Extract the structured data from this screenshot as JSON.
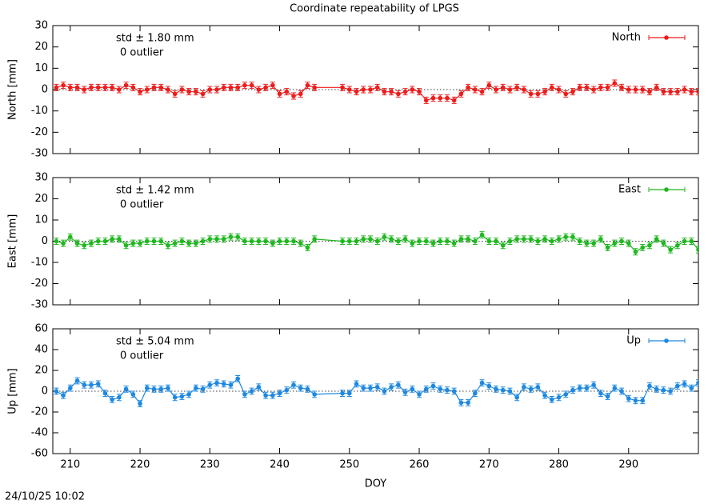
{
  "title": "Coordinate repeatability of LPGS",
  "footer": "24/10/25 10:02",
  "chart_data": [
    {
      "type": "line",
      "name": "North",
      "color": "#ee1c1c",
      "ylabel": "North [mm]",
      "std_label": "std ± 1.80 mm",
      "outlier_label": "0 outlier",
      "legend": "top-right",
      "xlim": [
        207.5,
        300
      ],
      "xticks": [
        210,
        220,
        230,
        240,
        250,
        260,
        270,
        280,
        290
      ],
      "ylim": [
        -30,
        30
      ],
      "yticks": [
        -30,
        -20,
        -10,
        0,
        10,
        20,
        30
      ],
      "reference_line": 0,
      "error": 1.5,
      "x": [
        208,
        209,
        210,
        211,
        212,
        213,
        214,
        215,
        216,
        217,
        218,
        219,
        220,
        221,
        222,
        223,
        224,
        225,
        226,
        227,
        228,
        229,
        230,
        231,
        232,
        233,
        234,
        235,
        236,
        237,
        238,
        239,
        240,
        241,
        242,
        243,
        244,
        245,
        249,
        250,
        251,
        252,
        253,
        254,
        255,
        256,
        257,
        258,
        259,
        260,
        261,
        262,
        263,
        264,
        265,
        266,
        267,
        268,
        269,
        270,
        271,
        272,
        273,
        274,
        275,
        276,
        277,
        278,
        279,
        280,
        281,
        282,
        283,
        284,
        285,
        286,
        287,
        288,
        289,
        290,
        291,
        292,
        293,
        294,
        295,
        296,
        297,
        298,
        299,
        300
      ],
      "values": [
        1,
        2,
        1,
        1,
        0,
        1,
        1,
        1,
        1,
        0,
        2,
        1,
        -1,
        0,
        1,
        1,
        0,
        -2,
        0,
        -1,
        -1,
        -2,
        0,
        0,
        1,
        1,
        1,
        2,
        2,
        0,
        1,
        2,
        -2,
        -1,
        -3,
        -2,
        2,
        1,
        1,
        0,
        -1,
        0,
        0,
        1,
        -1,
        -1,
        -2,
        -1,
        0,
        -1,
        -5,
        -4,
        -4,
        -4,
        -5,
        -2,
        1,
        0,
        -1,
        2,
        0,
        1,
        0,
        1,
        0,
        -2,
        -2,
        -1,
        1,
        0,
        -2,
        -1,
        1,
        1,
        0,
        1,
        1,
        3,
        1,
        0,
        0,
        0,
        -1,
        1,
        -1,
        -1,
        -1,
        0,
        -1,
        -1
      ]
    },
    {
      "type": "line",
      "name": "East",
      "color": "#1fb81f",
      "ylabel": "East [mm]",
      "std_label": "std ± 1.42 mm",
      "outlier_label": "0 outlier",
      "legend": "top-right",
      "xlim": [
        207.5,
        300
      ],
      "xticks": [
        210,
        220,
        230,
        240,
        250,
        260,
        270,
        280,
        290
      ],
      "ylim": [
        -30,
        30
      ],
      "yticks": [
        -30,
        -20,
        -10,
        0,
        10,
        20,
        30
      ],
      "reference_line": 0,
      "error": 1.5,
      "x": [
        208,
        209,
        210,
        211,
        212,
        213,
        214,
        215,
        216,
        217,
        218,
        219,
        220,
        221,
        222,
        223,
        224,
        225,
        226,
        227,
        228,
        229,
        230,
        231,
        232,
        233,
        234,
        235,
        236,
        237,
        238,
        239,
        240,
        241,
        242,
        243,
        244,
        245,
        249,
        250,
        251,
        252,
        253,
        254,
        255,
        256,
        257,
        258,
        259,
        260,
        261,
        262,
        263,
        264,
        265,
        266,
        267,
        268,
        269,
        270,
        271,
        272,
        273,
        274,
        275,
        276,
        277,
        278,
        279,
        280,
        281,
        282,
        283,
        284,
        285,
        286,
        287,
        288,
        289,
        290,
        291,
        292,
        293,
        294,
        295,
        296,
        297,
        298,
        299,
        300
      ],
      "values": [
        0,
        -1,
        2,
        -1,
        -2,
        -1,
        0,
        0,
        1,
        1,
        -2,
        -1,
        -1,
        0,
        0,
        0,
        -2,
        -1,
        0,
        -1,
        -1,
        0,
        1,
        1,
        1,
        2,
        2,
        0,
        0,
        0,
        0,
        -1,
        0,
        0,
        0,
        -1,
        -3,
        1,
        0,
        0,
        0,
        1,
        1,
        0,
        2,
        1,
        0,
        1,
        -1,
        0,
        0,
        -1,
        0,
        0,
        -1,
        1,
        1,
        0,
        3,
        0,
        0,
        -2,
        0,
        1,
        1,
        1,
        0,
        1,
        0,
        1,
        2,
        2,
        0,
        -1,
        -1,
        1,
        -3,
        -1,
        0,
        -1,
        -5,
        -3,
        -2,
        1,
        -1,
        -4,
        -2,
        0,
        0,
        -4
      ]
    },
    {
      "type": "line",
      "name": "Up",
      "color": "#1e88e0",
      "ylabel": "Up [mm]",
      "std_label": "std ± 5.04 mm",
      "outlier_label": "0 outlier",
      "legend": "top-right",
      "xlabel": "DOY",
      "xlim": [
        207.5,
        300
      ],
      "xticks": [
        210,
        220,
        230,
        240,
        250,
        260,
        270,
        280,
        290
      ],
      "ylim": [
        -60,
        60
      ],
      "yticks": [
        -60,
        -40,
        -20,
        0,
        20,
        40,
        60
      ],
      "reference_line": 0,
      "error": 3,
      "x": [
        208,
        209,
        210,
        211,
        212,
        213,
        214,
        215,
        216,
        217,
        218,
        219,
        220,
        221,
        222,
        223,
        224,
        225,
        226,
        227,
        228,
        229,
        230,
        231,
        232,
        233,
        234,
        235,
        236,
        237,
        238,
        239,
        240,
        241,
        242,
        243,
        244,
        245,
        249,
        250,
        251,
        252,
        253,
        254,
        255,
        256,
        257,
        258,
        259,
        260,
        261,
        262,
        263,
        264,
        265,
        266,
        267,
        268,
        269,
        270,
        271,
        272,
        273,
        274,
        275,
        276,
        277,
        278,
        279,
        280,
        281,
        282,
        283,
        284,
        285,
        286,
        287,
        288,
        289,
        290,
        291,
        292,
        293,
        294,
        295,
        296,
        297,
        298,
        299,
        300
      ],
      "values": [
        0,
        -4,
        3,
        10,
        6,
        6,
        7,
        -2,
        -8,
        -6,
        2,
        -3,
        -12,
        3,
        2,
        2,
        3,
        -6,
        -5,
        -3,
        3,
        2,
        6,
        8,
        7,
        6,
        12,
        -3,
        0,
        4,
        -4,
        -4,
        -2,
        1,
        6,
        3,
        2,
        -3,
        -2,
        -2,
        7,
        3,
        3,
        4,
        0,
        4,
        6,
        -1,
        2,
        -3,
        2,
        5,
        2,
        1,
        0,
        -11,
        -11,
        -2,
        8,
        5,
        2,
        1,
        0,
        -6,
        4,
        2,
        4,
        -4,
        -8,
        -6,
        -3,
        1,
        3,
        3,
        6,
        -2,
        -5,
        3,
        0,
        -7,
        -9,
        -9,
        5,
        2,
        1,
        0,
        5,
        7,
        3,
        8
      ]
    }
  ]
}
